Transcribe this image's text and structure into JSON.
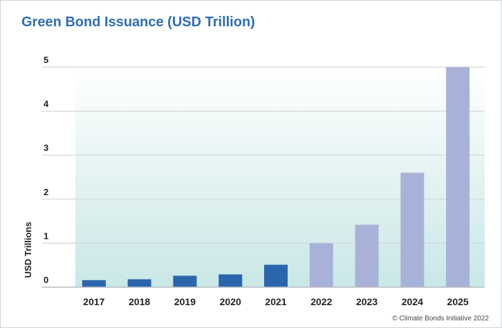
{
  "title": "Green Bond Issuance (USD Trillion)",
  "credit": "© Climate Bonds Initiative 2022",
  "colors": {
    "title": "#2e6db4",
    "actual_bar": "#2b66ad",
    "projected_bar": "#a8b2d9",
    "grid": "#d2d6d8",
    "axis_text": "#222222",
    "gradient_top": "#ffffff",
    "gradient_bottom": "#c9e7e6"
  },
  "chart_data": {
    "type": "bar",
    "title": "Green Bond Issuance (USD Trillion)",
    "ylabel": "USD Trillions",
    "xlabel": "",
    "ylim": [
      0,
      5
    ],
    "yticks": [
      0,
      1,
      2,
      3,
      4,
      5
    ],
    "grid": true,
    "categories": [
      "2017",
      "2018",
      "2019",
      "2020",
      "2021",
      "2022",
      "2023",
      "2024",
      "2025"
    ],
    "values": [
      0.16,
      0.18,
      0.26,
      0.29,
      0.51,
      1.0,
      1.42,
      2.6,
      5.0
    ],
    "bar_status": [
      "actual",
      "actual",
      "actual",
      "actual",
      "actual",
      "projected",
      "projected",
      "projected",
      "projected"
    ]
  }
}
